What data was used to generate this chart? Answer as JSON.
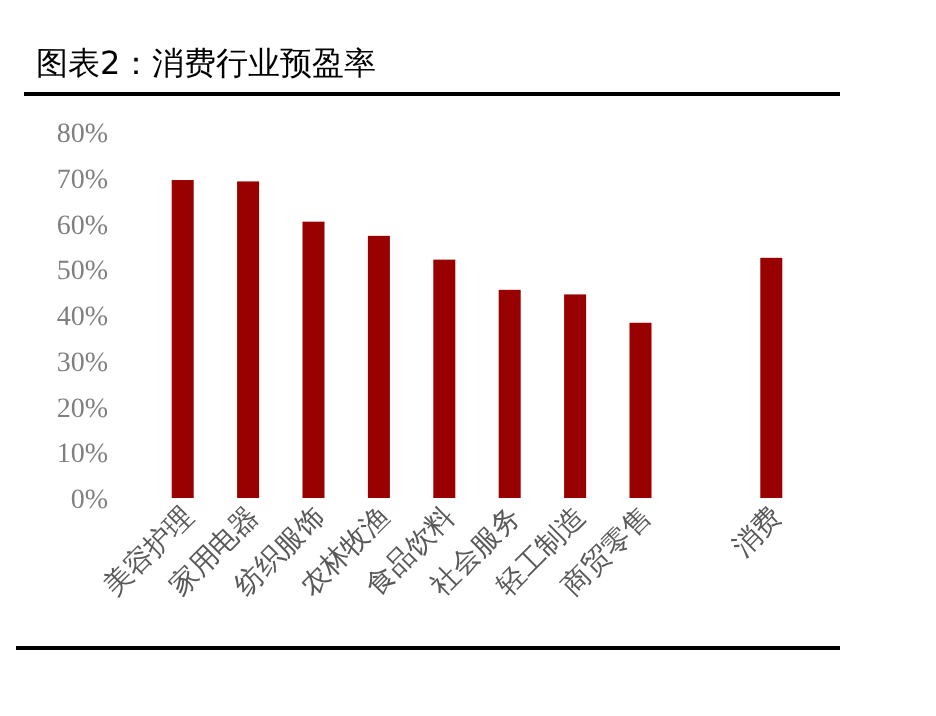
{
  "chart_data": {
    "type": "bar",
    "title": "图表2：消费行业预盈率",
    "categories": [
      "美容护理",
      "家用电器",
      "纺织服饰",
      "农林牧渔",
      "食品饮料",
      "社会服务",
      "轻工制造",
      "商贸零售",
      null,
      "消费"
    ],
    "values": [
      69.5,
      69.2,
      60.4,
      57.3,
      52.1,
      45.5,
      44.5,
      38.3,
      null,
      52.5
    ],
    "color": "#990000",
    "ylim": [
      0,
      80
    ],
    "yticks": [
      {
        "value": 0,
        "label": "0%"
      },
      {
        "value": 10,
        "label": "10%"
      },
      {
        "value": 20,
        "label": "20%"
      },
      {
        "value": 30,
        "label": "30%"
      },
      {
        "value": 40,
        "label": "40%"
      },
      {
        "value": 50,
        "label": "50%"
      },
      {
        "value": 60,
        "label": "60%"
      },
      {
        "value": 70,
        "label": "70%"
      },
      {
        "value": 80,
        "label": "80%"
      }
    ],
    "grid": false
  }
}
